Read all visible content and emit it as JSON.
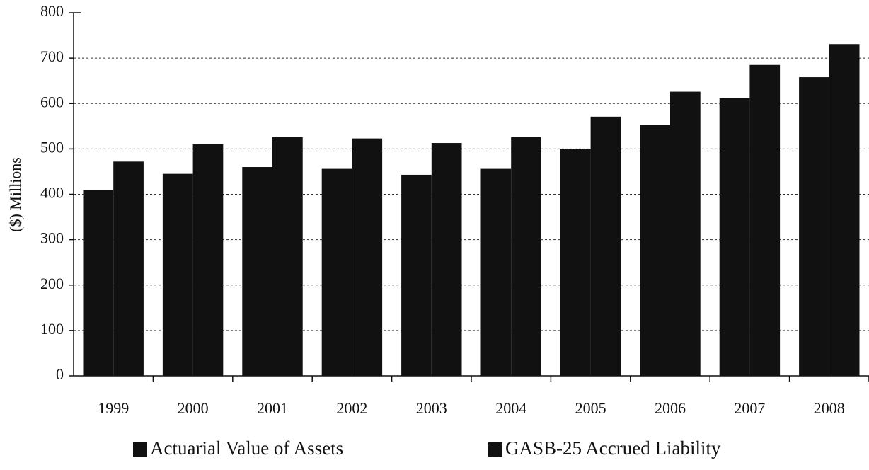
{
  "chart_data": {
    "type": "bar",
    "y_label": "($) Millions",
    "categories": [
      "1999",
      "2000",
      "2001",
      "2002",
      "2003",
      "2004",
      "2005",
      "2006",
      "2007",
      "2008"
    ],
    "series": [
      {
        "name": "Actuarial Value of Assets",
        "color": "#111111",
        "values": [
          410,
          445,
          460,
          456,
          443,
          456,
          500,
          553,
          612,
          658
        ]
      },
      {
        "name": "GASB-25 Accrued Liability",
        "color": "#111111",
        "values": [
          472,
          510,
          526,
          523,
          513,
          526,
          571,
          626,
          685,
          731
        ]
      }
    ],
    "ylim": [
      0,
      800
    ],
    "yticks": [
      0,
      100,
      200,
      300,
      400,
      500,
      600,
      700,
      800
    ],
    "grid": true,
    "legend": "bottom"
  }
}
